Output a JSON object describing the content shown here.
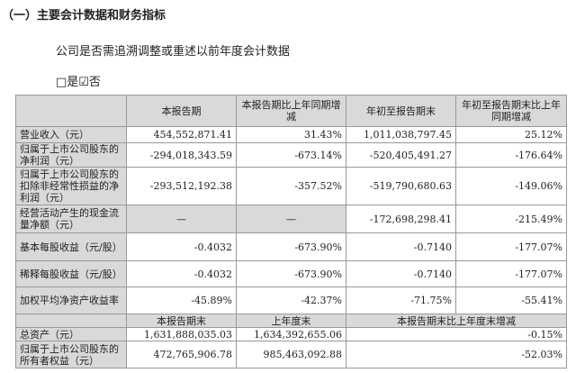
{
  "section_title": "（一）主要会计数据和财务指标",
  "question": "公司是否需追溯调整或重述以前年度会计数据",
  "answer": "□是☑否",
  "table1": {
    "headers": [
      "",
      "本报告期",
      "本报告期比上年同期增减",
      "年初至报告期末",
      "年初至报告期末比上年同期增减"
    ],
    "rows": [
      [
        "营业收入（元）",
        "454,552,871.41",
        "31.43%",
        "1,011,038,797.45",
        "25.12%"
      ],
      [
        "归属于上市公司股东的净利润（元）",
        "-294,018,343.59",
        "-673.14%",
        "-520,405,491.27",
        "-176.64%"
      ],
      [
        "归属于上市公司股东的扣除非经常性损益的净利润（元）",
        "-293,512,192.38",
        "-357.52%",
        "-519,790,680.63",
        "-149.06%"
      ],
      [
        "经营活动产生的现金流量净额（元）",
        "—",
        "—",
        "-172,698,298.41",
        "-215.49%"
      ],
      [
        "基本每股收益（元/股）",
        "-0.4032",
        "-673.90%",
        "-0.7140",
        "-177.07%"
      ],
      [
        "稀释每股收益（元/股）",
        "-0.4032",
        "-673.90%",
        "-0.7140",
        "-177.07%"
      ],
      [
        "加权平均净资产收益率",
        "-45.89%",
        "-42.37%",
        "-71.75%",
        "-55.41%"
      ]
    ]
  },
  "table2": {
    "headers": [
      "",
      "本报告期末",
      "上年度末",
      "本报告期末比上年度末增减"
    ],
    "rows": [
      [
        "总资产（元）",
        "1,631,888,035.03",
        "1,634,392,655.06",
        "-0.15%"
      ],
      [
        "归属于上市公司股东的所有者权益（元）",
        "472,765,906.78",
        "985,463,092.88",
        "-52.03%"
      ]
    ]
  }
}
